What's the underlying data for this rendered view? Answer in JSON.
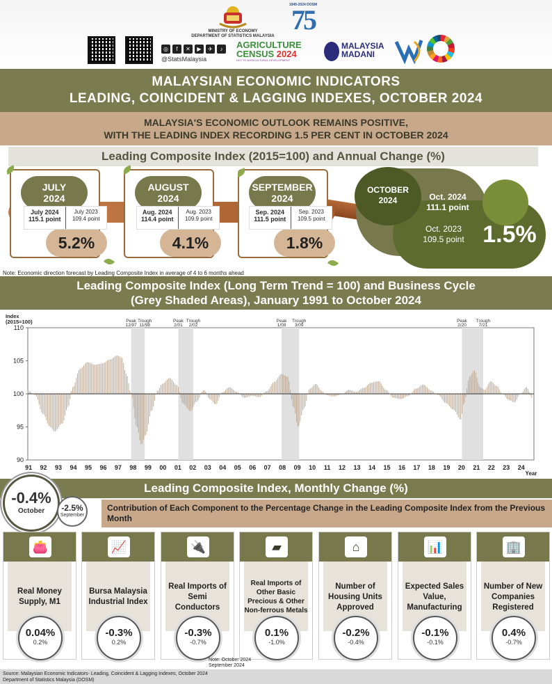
{
  "header": {
    "ministry": "MINISTRY OF ECONOMY\nDEPARTMENT OF STATISTICS MALAYSIA",
    "dosm_years": "1949-2024 DOSM",
    "dosm_number": "75",
    "social_handle": "@StatsMalaysia",
    "agri_line1": "AGRICULTURE",
    "agri_line2a": "CENSUS ",
    "agri_line2b": "2024",
    "agri_line3": "KEY TO AGRICULTURAL DEVELOPMENT",
    "madani_line1": "MALAYSIA",
    "madani_line2": "MADANI"
  },
  "title": {
    "line1": "MALAYSIAN ECONOMIC INDICATORS",
    "line2": "LEADING, COINCIDENT & LAGGING INDEXES, OCTOBER 2024"
  },
  "subtitle": {
    "line1": "MALAYSIA'S ECONOMIC OUTLOOK REMAINS POSITIVE,",
    "line2": "WITH THE LEADING INDEX RECORDING 1.5 PER CENT IN OCTOBER 2024"
  },
  "lci_heading": "Leading Composite Index (2015=100) and Annual Change (%)",
  "months": [
    {
      "month": "JULY",
      "year": "2024",
      "cur_label": "July 2024",
      "cur_value": "115.1 point",
      "prev_label": "July 2023",
      "prev_value": "109.4 point",
      "pct": "5.2%"
    },
    {
      "month": "AUGUST",
      "year": "2024",
      "cur_label": "Aug. 2024",
      "cur_value": "114.4 point",
      "prev_label": "Aug. 2023",
      "prev_value": "109.9 point",
      "pct": "4.1%"
    },
    {
      "month": "SEPTEMBER",
      "year": "2024",
      "cur_label": "Sep. 2024",
      "cur_value": "111.5 point",
      "prev_label": "Sep. 2023",
      "prev_value": "109.5 point",
      "pct": "1.8%"
    }
  ],
  "october": {
    "month": "OCTOBER",
    "year": "2024",
    "cur_label": "Oct. 2024",
    "cur_value": "111.1 point",
    "prev_label": "Oct. 2023",
    "prev_value": "109.5 point",
    "pct": "1.5%"
  },
  "lci_note": "Note: Economic direction forecast by Leading Composite Index in average of 4 to 6 months ahead",
  "long_term": {
    "line1": "Leading Composite Index (Long Term Trend = 100) and Business Cycle",
    "line2": "(Grey Shaded Areas), January 1991 to October 2024"
  },
  "chart_data": {
    "type": "bar",
    "ylabel": "Index\n(2015=100)",
    "xlabel": "Year",
    "ylim": [
      90,
      110
    ],
    "yticks": [
      90,
      95,
      100,
      105,
      110
    ],
    "baseline": 100,
    "x_categories": [
      "91",
      "92",
      "93",
      "94",
      "95",
      "96",
      "97",
      "98",
      "99",
      "00",
      "01",
      "02",
      "03",
      "04",
      "05",
      "06",
      "07",
      "08",
      "09",
      "10",
      "11",
      "12",
      "13",
      "14",
      "15",
      "16",
      "17",
      "18",
      "19",
      "20",
      "21",
      "22",
      "23",
      "24"
    ],
    "shaded_periods": [
      {
        "peak": "12/97",
        "trough": "11/98",
        "start": 1997.92,
        "end": 1998.83
      },
      {
        "peak": "2/01",
        "trough": "2/02",
        "start": 2001.08,
        "end": 2002.08
      },
      {
        "peak": "1/08",
        "trough": "3/09",
        "start": 2008.0,
        "end": 2009.17
      },
      {
        "peak": "2/20",
        "trough": "7/21",
        "start": 2020.08,
        "end": 2021.5
      }
    ],
    "peak_label": "Peak",
    "trough_label": "Trough",
    "series_points": [
      [
        1991.0,
        100.5
      ],
      [
        1991.5,
        99.8
      ],
      [
        1992.0,
        97.0
      ],
      [
        1992.5,
        95.0
      ],
      [
        1992.8,
        94.3
      ],
      [
        1993.3,
        95.5
      ],
      [
        1993.7,
        98.0
      ],
      [
        1994.0,
        101.0
      ],
      [
        1994.5,
        103.8
      ],
      [
        1995.0,
        104.8
      ],
      [
        1995.5,
        104.4
      ],
      [
        1996.0,
        104.6
      ],
      [
        1996.5,
        105.2
      ],
      [
        1997.0,
        105.8
      ],
      [
        1997.3,
        105.5
      ],
      [
        1997.6,
        103.0
      ],
      [
        1997.9,
        100.2
      ],
      [
        1998.3,
        95.0
      ],
      [
        1998.6,
        92.3
      ],
      [
        1998.9,
        93.8
      ],
      [
        1999.3,
        97.5
      ],
      [
        1999.7,
        100.5
      ],
      [
        2000.0,
        101.5
      ],
      [
        2000.5,
        102.4
      ],
      [
        2001.0,
        101.3
      ],
      [
        2001.4,
        98.5
      ],
      [
        2001.9,
        97.4
      ],
      [
        2002.3,
        98.8
      ],
      [
        2002.8,
        100.6
      ],
      [
        2003.2,
        99.2
      ],
      [
        2003.6,
        98.4
      ],
      [
        2004.0,
        100.2
      ],
      [
        2004.5,
        101.0
      ],
      [
        2005.0,
        100.3
      ],
      [
        2005.5,
        99.4
      ],
      [
        2006.0,
        99.7
      ],
      [
        2006.5,
        99.5
      ],
      [
        2007.0,
        100.4
      ],
      [
        2007.5,
        101.8
      ],
      [
        2008.0,
        103.0
      ],
      [
        2008.4,
        102.6
      ],
      [
        2008.8,
        98.0
      ],
      [
        2009.1,
        95.0
      ],
      [
        2009.5,
        97.8
      ],
      [
        2009.9,
        100.8
      ],
      [
        2010.3,
        101.5
      ],
      [
        2010.7,
        100.4
      ],
      [
        2011.0,
        99.8
      ],
      [
        2011.5,
        99.6
      ],
      [
        2012.0,
        99.9
      ],
      [
        2012.5,
        100.6
      ],
      [
        2013.0,
        100.3
      ],
      [
        2013.5,
        100.9
      ],
      [
        2014.0,
        101.7
      ],
      [
        2014.5,
        101.9
      ],
      [
        2015.0,
        100.6
      ],
      [
        2015.5,
        99.4
      ],
      [
        2016.0,
        99.2
      ],
      [
        2016.5,
        99.7
      ],
      [
        2017.0,
        100.8
      ],
      [
        2017.5,
        101.4
      ],
      [
        2018.0,
        100.5
      ],
      [
        2018.5,
        99.8
      ],
      [
        2019.0,
        98.6
      ],
      [
        2019.5,
        97.6
      ],
      [
        2020.0,
        96.1
      ],
      [
        2020.2,
        98.5
      ],
      [
        2020.6,
        102.6
      ],
      [
        2020.9,
        103.6
      ],
      [
        2021.3,
        101.0
      ],
      [
        2021.6,
        100.6
      ],
      [
        2022.0,
        101.9
      ],
      [
        2022.4,
        101.2
      ],
      [
        2022.8,
        100.0
      ],
      [
        2023.2,
        99.1
      ],
      [
        2023.6,
        98.7
      ],
      [
        2024.0,
        100.0
      ],
      [
        2024.4,
        101.0
      ],
      [
        2024.8,
        99.3
      ]
    ]
  },
  "monthly_change": {
    "heading": "Leading Composite Index, Monthly Change (%)",
    "oct_value": "-0.4%",
    "oct_label": "October",
    "sep_value": "-2.5%",
    "sep_label": "September",
    "contrib_text": "Contribution of Each Component to the Percentage Change in the Leading Composite Index from the Previous Month"
  },
  "components": [
    {
      "name": "Real Money Supply, M1",
      "icon": "wallet-icon",
      "oct": "0.04%",
      "sep": "0.2%"
    },
    {
      "name": "Bursa Malaysia Industrial Index",
      "icon": "chart-magnifier-icon",
      "oct": "-0.3%",
      "sep": "0.2%"
    },
    {
      "name": "Real Imports of Semi Conductors",
      "icon": "chip-plug-icon",
      "oct": "-0.3%",
      "sep": "-0.7%"
    },
    {
      "name": "Real Imports of Other Basic Precious & Other Non-ferrous Metals",
      "icon": "metal-ingot-icon",
      "oct": "0.1%",
      "sep": "-1.0%"
    },
    {
      "name": "Number of Housing Units Approved",
      "icon": "house-icon",
      "oct": "-0.2%",
      "sep": "-0.4%"
    },
    {
      "name": "Expected Sales Value, Manufacturing",
      "icon": "presentation-icon",
      "oct": "-0.1%",
      "sep": "-0.1%"
    },
    {
      "name": "Number of New Companies Registered",
      "icon": "building-icon",
      "oct": "0.4%",
      "sep": "-0.7%"
    }
  ],
  "component_note": "Note: October 2024\nSeptember 2024",
  "footer": {
    "line1": "Source: Malaysian Economic Indicators- Leading, Coincident & Lagging Indexes, October 2024",
    "line2": "Department of Statistics Malaysia (DOSM)"
  },
  "colors": {
    "olive": "#7a7b4f",
    "tan": "#c8a88a",
    "bar": "#b9a48f"
  }
}
